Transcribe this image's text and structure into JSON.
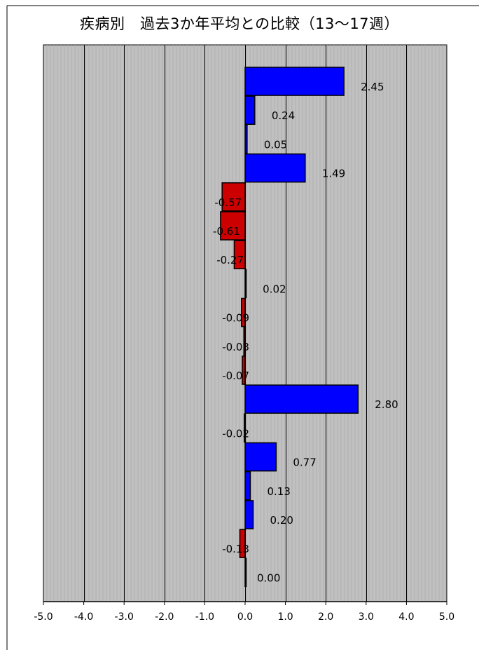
{
  "title": "疾病別　過去3か年平均との比較（13〜17週）",
  "colors": {
    "positive": "#0000ff",
    "negative": "#cc0000",
    "plot_bg": "#c0c0c0"
  },
  "chart_data": {
    "type": "bar",
    "orientation": "horizontal",
    "title": "疾病別　過去3か年平均との比較（13〜17週）",
    "xlim": [
      -5.0,
      5.0
    ],
    "xticks": [
      "-5.0",
      "-4.0",
      "-3.0",
      "-2.0",
      "-1.0",
      "0.0",
      "1.0",
      "2.0",
      "3.0",
      "4.0",
      "5.0"
    ],
    "grid": "vertical",
    "legend": "none",
    "values": [
      2.45,
      0.24,
      0.05,
      1.49,
      -0.57,
      -0.61,
      -0.27,
      0.02,
      -0.09,
      -0.03,
      -0.07,
      2.8,
      -0.02,
      0.77,
      0.13,
      0.2,
      -0.13,
      0.0
    ],
    "labels": [
      "2.45",
      "0.24",
      "0.05",
      "1.49",
      "-0.57",
      "-0.61",
      "-0.27",
      "0.02",
      "-0.09",
      "-0.03",
      "-0.07",
      "2.80",
      "-0.02",
      "0.77",
      "0.13",
      "0.20",
      "-0.13",
      "0.00"
    ]
  }
}
